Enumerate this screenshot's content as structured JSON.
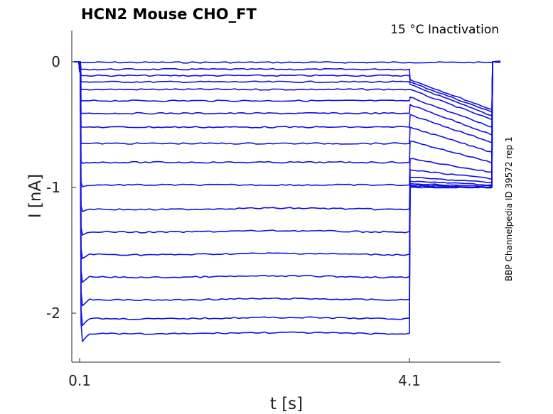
{
  "chart_data": {
    "type": "line",
    "title": "HCN2  Mouse  CHO_FT",
    "subtitle": "15 °C  Inactivation",
    "side_note": "BBP Channelpedia ID 39572 rep 1",
    "xlabel": "t [s]",
    "ylabel": "I [nA]",
    "x_ticks": [
      "0.1",
      "4.1"
    ],
    "y_ticks": [
      "0",
      "-1",
      "-2"
    ],
    "xlim": [
      0.0,
      5.3
    ],
    "ylim": [
      -2.4,
      0.25
    ],
    "grid": false,
    "color": "#1010e0",
    "protocol": {
      "step_start": 0.1,
      "step_end": 4.1,
      "trace_end": 5.1
    },
    "series": [
      {
        "steady": -0.005,
        "tail_start": -0.005,
        "tail_end": -0.005
      },
      {
        "steady": -0.06,
        "tail_start": -0.14,
        "tail_end": -0.38
      },
      {
        "steady": -0.11,
        "tail_start": -0.16,
        "tail_end": -0.4
      },
      {
        "steady": -0.16,
        "tail_start": -0.18,
        "tail_end": -0.43
      },
      {
        "steady": -0.22,
        "tail_start": -0.22,
        "tail_end": -0.46
      },
      {
        "steady": -0.31,
        "tail_start": -0.28,
        "tail_end": -0.52
      },
      {
        "steady": -0.41,
        "tail_start": -0.34,
        "tail_end": -0.58
      },
      {
        "steady": -0.52,
        "tail_start": -0.42,
        "tail_end": -0.64
      },
      {
        "steady": -0.65,
        "tail_start": -0.52,
        "tail_end": -0.72
      },
      {
        "steady": -0.8,
        "tail_start": -0.63,
        "tail_end": -0.8
      },
      {
        "steady": -0.98,
        "tail_start": -0.77,
        "tail_end": -0.88
      },
      {
        "steady": -1.17,
        "tail_start": -0.86,
        "tail_end": -0.93
      },
      {
        "steady": -1.35,
        "tail_start": -0.92,
        "tail_end": -0.96
      },
      {
        "steady": -1.53,
        "tail_start": -0.95,
        "tail_end": -0.98
      },
      {
        "steady": -1.71,
        "tail_start": -0.97,
        "tail_end": -0.99
      },
      {
        "steady": -1.89,
        "tail_start": -0.98,
        "tail_end": -1.0
      },
      {
        "steady": -2.04,
        "tail_start": -0.99,
        "tail_end": -1.0
      },
      {
        "steady": -2.16,
        "tail_start": -1.0,
        "tail_end": -1.0
      }
    ]
  }
}
